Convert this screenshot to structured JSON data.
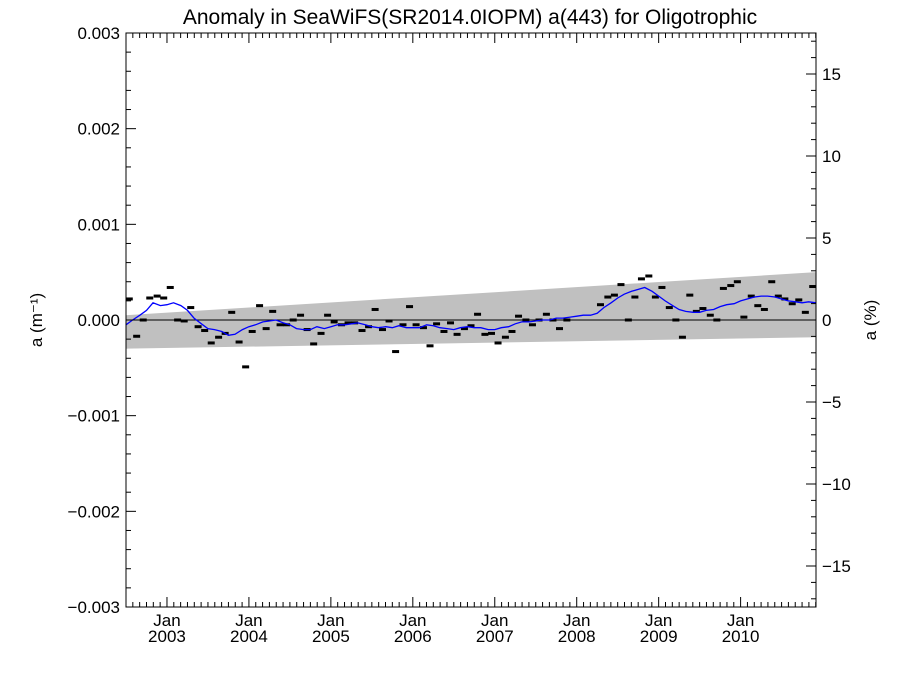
{
  "chart_data": {
    "type": "scatter",
    "title": "Anomaly in SeaWiFS(SR2014.0IOPM) a(443) for Oligotrophic",
    "ylabel_left": "a (m⁻¹)",
    "ylabel_right": "a (%)",
    "xlabel": "",
    "x_units": "year",
    "xlim": [
      2002.5,
      2010.92
    ],
    "ylim_left": [
      -0.003,
      0.003
    ],
    "ylim_right": [
      -17.5,
      17.5
    ],
    "yticks_left": [
      {
        "value": 0.003,
        "label": "0.003"
      },
      {
        "value": 0.002,
        "label": "0.002"
      },
      {
        "value": 0.001,
        "label": "0.001"
      },
      {
        "value": 0.0,
        "label": "0.000"
      },
      {
        "value": -0.001,
        "label": "−0.001"
      },
      {
        "value": -0.002,
        "label": "−0.002"
      },
      {
        "value": -0.003,
        "label": "−0.003"
      }
    ],
    "yticks_right": [
      {
        "value": 15,
        "label": "15"
      },
      {
        "value": 10,
        "label": "10"
      },
      {
        "value": 5,
        "label": "5"
      },
      {
        "value": 0,
        "label": "0"
      },
      {
        "value": -5,
        "label": "−5"
      },
      {
        "value": -10,
        "label": "−10"
      },
      {
        "value": -15,
        "label": "−15"
      }
    ],
    "xticks": [
      {
        "value": 2003.0,
        "month": "Jan",
        "year": "2003"
      },
      {
        "value": 2004.0,
        "month": "Jan",
        "year": "2004"
      },
      {
        "value": 2005.0,
        "month": "Jan",
        "year": "2005"
      },
      {
        "value": 2006.0,
        "month": "Jan",
        "year": "2006"
      },
      {
        "value": 2007.0,
        "month": "Jan",
        "year": "2007"
      },
      {
        "value": 2008.0,
        "month": "Jan",
        "year": "2008"
      },
      {
        "value": 2009.0,
        "month": "Jan",
        "year": "2009"
      },
      {
        "value": 2010.0,
        "month": "Jan",
        "year": "2010"
      }
    ],
    "uncertainty_band": {
      "x": [
        2002.5,
        2010.92
      ],
      "upper": [
        5e-05,
        0.0005
      ],
      "lower": [
        -0.0003,
        -0.00018
      ],
      "color": "#c0c0c0"
    },
    "zero_line": 0.0,
    "series": [
      {
        "style": "markers",
        "color": "#000000",
        "x": [
          2002.54,
          2002.63,
          2002.71,
          2002.79,
          2002.88,
          2002.96,
          2003.04,
          2003.13,
          2003.21,
          2003.29,
          2003.38,
          2003.46,
          2003.54,
          2003.63,
          2003.71,
          2003.79,
          2003.88,
          2003.96,
          2004.04,
          2004.13,
          2004.21,
          2004.29,
          2004.38,
          2004.46,
          2004.54,
          2004.63,
          2004.71,
          2004.79,
          2004.88,
          2004.96,
          2005.04,
          2005.13,
          2005.21,
          2005.29,
          2005.38,
          2005.46,
          2005.54,
          2005.63,
          2005.71,
          2005.79,
          2005.88,
          2005.96,
          2006.04,
          2006.13,
          2006.21,
          2006.29,
          2006.38,
          2006.46,
          2006.54,
          2006.63,
          2006.71,
          2006.79,
          2006.88,
          2006.96,
          2007.04,
          2007.13,
          2007.21,
          2007.29,
          2007.38,
          2007.46,
          2007.54,
          2007.63,
          2007.71,
          2007.79,
          2007.88,
          2008.29,
          2008.38,
          2008.46,
          2008.54,
          2008.63,
          2008.71,
          2008.79,
          2008.88,
          2008.96,
          2009.04,
          2009.13,
          2009.21,
          2009.29,
          2009.38,
          2009.46,
          2009.54,
          2009.63,
          2009.71,
          2009.79,
          2009.88,
          2009.96,
          2010.04,
          2010.13,
          2010.21,
          2010.29,
          2010.38,
          2010.46,
          2010.54,
          2010.63,
          2010.71,
          2010.79,
          2010.88
        ],
        "y": [
          0.00022,
          -0.00017,
          0.0,
          0.00023,
          0.00025,
          0.00023,
          0.00034,
          0.0,
          -1e-05,
          0.00013,
          -7e-05,
          -0.00011,
          -0.00024,
          -0.00018,
          -0.00014,
          8e-05,
          -0.00023,
          -0.00049,
          -0.00012,
          0.00015,
          -9e-05,
          9e-05,
          -5e-05,
          -5e-05,
          0.0,
          5e-05,
          -0.0001,
          -0.00025,
          -0.00014,
          5e-05,
          -2e-05,
          -5e-05,
          -3e-05,
          -3e-05,
          -0.00011,
          -7e-05,
          0.00011,
          -0.0001,
          -1e-05,
          -0.00033,
          -5e-05,
          0.00014,
          -5e-05,
          -8e-05,
          -0.00027,
          -4e-05,
          -0.00012,
          -3e-05,
          -0.00015,
          -9e-05,
          -6e-05,
          6e-05,
          -0.00015,
          -0.00014,
          -0.00024,
          -0.00018,
          -0.00012,
          4e-05,
          0.0,
          -5e-05,
          0.0,
          6e-05,
          0.0,
          -9e-05,
          0.0,
          0.00016,
          0.00024,
          0.00026,
          0.00037,
          0.0,
          0.00024,
          0.00043,
          0.00046,
          0.00024,
          0.00034,
          0.00013,
          0.0,
          -0.00018,
          0.00026,
          9e-05,
          0.00012,
          5e-05,
          0.0,
          0.00033,
          0.00036,
          0.0004,
          3e-05,
          0.00025,
          0.00015,
          0.00011,
          0.0004,
          0.00025,
          0.00022,
          0.00017,
          0.00021,
          8e-05,
          0.00035
        ]
      },
      {
        "style": "line",
        "color": "#0000ff",
        "x": [
          2002.5,
          2002.58,
          2002.67,
          2002.75,
          2002.83,
          2002.92,
          2003.0,
          2003.08,
          2003.17,
          2003.25,
          2003.33,
          2003.42,
          2003.5,
          2003.58,
          2003.67,
          2003.75,
          2003.83,
          2003.92,
          2004.0,
          2004.08,
          2004.17,
          2004.25,
          2004.33,
          2004.42,
          2004.5,
          2004.58,
          2004.67,
          2004.75,
          2004.83,
          2004.92,
          2005.0,
          2005.08,
          2005.17,
          2005.25,
          2005.33,
          2005.42,
          2005.5,
          2005.58,
          2005.67,
          2005.75,
          2005.83,
          2005.92,
          2006.0,
          2006.08,
          2006.17,
          2006.25,
          2006.33,
          2006.42,
          2006.5,
          2006.58,
          2006.67,
          2006.75,
          2006.83,
          2006.92,
          2007.0,
          2007.08,
          2007.17,
          2007.25,
          2007.33,
          2007.42,
          2007.5,
          2007.58,
          2007.67,
          2007.75,
          2007.83,
          2007.92,
          2008.0,
          2008.08,
          2008.17,
          2008.25,
          2008.33,
          2008.42,
          2008.5,
          2008.58,
          2008.67,
          2008.75,
          2008.83,
          2008.92,
          2009.0,
          2009.08,
          2009.17,
          2009.25,
          2009.33,
          2009.42,
          2009.5,
          2009.58,
          2009.67,
          2009.75,
          2009.83,
          2009.92,
          2010.0,
          2010.08,
          2010.17,
          2010.25,
          2010.33,
          2010.42,
          2010.5,
          2010.58,
          2010.67,
          2010.75,
          2010.83,
          2010.92
        ],
        "y": [
          -5e-05,
          0.0,
          5e-05,
          0.0001,
          0.00018,
          0.00015,
          0.00016,
          0.00018,
          0.00015,
          0.0001,
          2e-05,
          -4e-05,
          -9e-05,
          -0.0001,
          -0.00012,
          -0.00016,
          -0.00015,
          -0.0001,
          -7e-05,
          -5e-05,
          -2e-05,
          -1e-05,
          0.0,
          -3e-05,
          -5e-05,
          -9e-05,
          -0.0001,
          -0.0001,
          -7e-05,
          -9e-05,
          -7e-05,
          -5e-05,
          -5e-05,
          -4e-05,
          -3e-05,
          -5e-05,
          -7e-05,
          -8e-05,
          -7e-05,
          -8e-05,
          -6e-05,
          -8e-05,
          -8e-05,
          -8e-05,
          -5e-05,
          -6e-05,
          -8e-05,
          -9e-05,
          -0.0001,
          -8e-05,
          -7e-05,
          -8e-05,
          -8e-05,
          -0.0001,
          -0.0001,
          -8e-05,
          -7e-05,
          -4e-05,
          -2e-05,
          -2e-05,
          -1e-05,
          0.0,
          0.0,
          2e-05,
          2e-05,
          3e-05,
          4e-05,
          5e-05,
          5e-05,
          7e-05,
          0.00013,
          0.00018,
          0.00023,
          0.00027,
          0.0003,
          0.00032,
          0.00034,
          0.0003,
          0.00025,
          0.0002,
          0.00015,
          0.00011,
          9e-05,
          8e-05,
          8e-05,
          0.0001,
          0.00011,
          0.00014,
          0.00016,
          0.00017,
          0.0002,
          0.00022,
          0.00024,
          0.00025,
          0.00025,
          0.00024,
          0.00022,
          0.0002,
          0.00019,
          0.00018,
          0.00019,
          0.00018
        ]
      }
    ],
    "grid": false
  }
}
